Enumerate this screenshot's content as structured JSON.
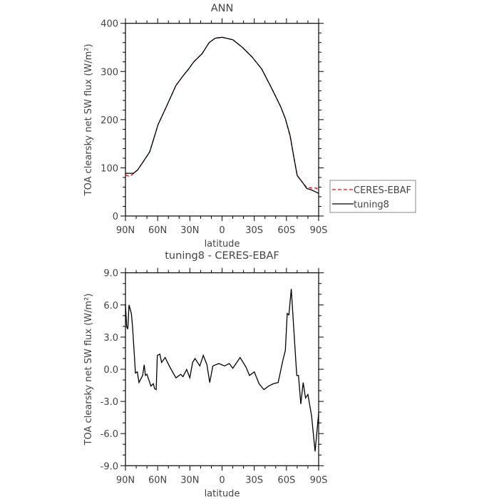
{
  "chart_data": [
    {
      "type": "line",
      "title": "ANN",
      "xlabel": "latitude",
      "ylabel": "TOA clearsky net SW flux (W/m²)",
      "xlim": [
        90,
        -90
      ],
      "ylim": [
        0,
        400
      ],
      "xticks": [
        90,
        60,
        30,
        0,
        -30,
        -60,
        -90
      ],
      "xtick_labels": [
        "90N",
        "60N",
        "30N",
        "0",
        "30S",
        "60S",
        "90S"
      ],
      "yticks": [
        0,
        100,
        200,
        300,
        400
      ],
      "ytick_labels": [
        "0",
        "100",
        "200",
        "300",
        "400"
      ],
      "legend_position": "right-bottom outside",
      "series": [
        {
          "name": "CERES-EBAF",
          "color": "#ff0000",
          "dash": true,
          "x": [
            90,
            87,
            85,
            82.5,
            78.5,
            74,
            67.4,
            59.6,
            51.9,
            43,
            36.3,
            31.9,
            26.4,
            18.6,
            12,
            6.4,
            0,
            -10,
            -19,
            -28,
            -37,
            -46,
            -54.6,
            -59,
            -63.4,
            -66.8,
            -70,
            -74.5,
            -79,
            -83.4,
            -88,
            -90
          ],
          "y": [
            85,
            83,
            84,
            88,
            96,
            111,
            133,
            190,
            227,
            271,
            291,
            303,
            320,
            337,
            360,
            369,
            371,
            366,
            350,
            330,
            305,
            266,
            227,
            202,
            165,
            123,
            84,
            71,
            59,
            58,
            58,
            52
          ]
        },
        {
          "name": "tuning8",
          "color": "#000000",
          "dash": false,
          "x": [
            90,
            82.5,
            78.5,
            74,
            67.4,
            59.6,
            51.9,
            43,
            36.3,
            31.9,
            26.4,
            18.6,
            12,
            6.4,
            0,
            -10,
            -19,
            -28,
            -37,
            -46,
            -54.6,
            -59,
            -63.4,
            -66.8,
            -70,
            -74.5,
            -79,
            -83.4,
            -90
          ],
          "y": [
            88.7,
            88.7,
            96,
            111,
            133,
            190,
            227,
            271,
            291,
            303,
            320,
            337,
            360,
            369,
            371,
            366,
            350,
            330,
            305,
            266,
            227,
            202,
            167,
            123,
            84,
            71,
            57,
            54,
            47
          ]
        }
      ]
    },
    {
      "type": "line",
      "title": "tuning8 - CERES-EBAF",
      "xlabel": "latitude",
      "ylabel": "TOA clearsky net SW flux (W/m²)",
      "xlim": [
        90,
        -90
      ],
      "ylim": [
        -9,
        9
      ],
      "xticks": [
        90,
        60,
        30,
        0,
        -30,
        -60,
        -90
      ],
      "xtick_labels": [
        "90N",
        "60N",
        "30N",
        "0",
        "30S",
        "60S",
        "90S"
      ],
      "yticks": [
        -9,
        -6,
        -3,
        0,
        3,
        6,
        9
      ],
      "ytick_labels": [
        "-9.0",
        "-6.0",
        "-3.0",
        "0.0",
        "3.0",
        "6.0",
        "9.0"
      ],
      "series": [
        {
          "name": "tuning8 - CERES-EBAF",
          "color": "#000000",
          "x": [
            90,
            88.9,
            87.8,
            86.7,
            84.5,
            83.4,
            81.8,
            80.7,
            79,
            77.4,
            74,
            72.5,
            71.4,
            70,
            66.3,
            64,
            62.9,
            61.4,
            60.3,
            58,
            56.3,
            53,
            50.8,
            47.4,
            43,
            38.6,
            36.4,
            33,
            30,
            27.4,
            25.2,
            20.7,
            17.5,
            14.1,
            11.5,
            8.6,
            3,
            -2.3,
            -6.8,
            -10,
            -16.8,
            -22.3,
            -25.6,
            -30,
            -34.5,
            -39,
            -43.4,
            -47.8,
            -52.3,
            -56.7,
            -59,
            -60.7,
            -62.3,
            -64.5,
            -67.8,
            -69.6,
            -71.2,
            -73.4,
            -75.6,
            -77.8,
            -80,
            -83.4,
            -86.7,
            -90
          ],
          "y": [
            6.07,
            3.97,
            3.75,
            6.0,
            5.2,
            4.0,
            1.5,
            -0.35,
            -0.24,
            -1.24,
            -0.58,
            0.42,
            -0.58,
            -0.47,
            -1.57,
            -1.35,
            -1.8,
            -1.9,
            1.3,
            1.42,
            0.64,
            1.1,
            0.64,
            -0.02,
            -0.8,
            -0.47,
            -0.69,
            -0.02,
            -0.8,
            0.64,
            1.0,
            0.31,
            1.3,
            0.42,
            -1.24,
            0.31,
            0.53,
            0.31,
            0.53,
            0.09,
            1.09,
            0.2,
            -0.58,
            -0.24,
            -1.35,
            -1.9,
            -1.57,
            -1.35,
            -1.24,
            0.86,
            1.75,
            5.2,
            5.08,
            7.5,
            2.2,
            -0.58,
            -0.58,
            -3.24,
            -1.24,
            -2.68,
            -2.35,
            -4.35,
            -7.67,
            -4.1
          ]
        }
      ]
    }
  ]
}
